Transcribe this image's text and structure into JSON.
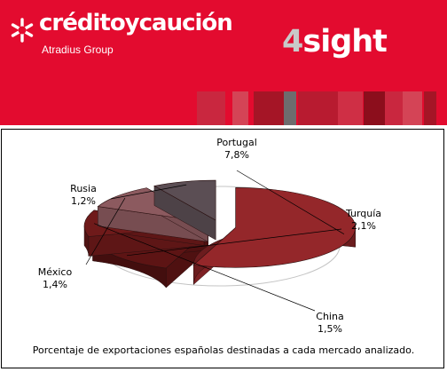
{
  "banner": {
    "brand_name": "créditoycaución",
    "brand_sub": "Atradius Group",
    "product_number": "4",
    "product_word": "sight",
    "colors": {
      "background": "#e30b2f",
      "block_shades": [
        "#c9273f",
        "#d44456",
        "#a51526",
        "#6e6c6e",
        "#b81b30",
        "#cf2f45",
        "#8c0e1c"
      ]
    }
  },
  "chart_data": {
    "type": "pie",
    "style": "3d-exploded",
    "slices": [
      {
        "label": "Portugal",
        "value": 7.8,
        "display": "7,8%",
        "color": "#94272a"
      },
      {
        "label": "Turquía",
        "value": 2.1,
        "display": "2,1%",
        "color": "#5d1414"
      },
      {
        "label": "China",
        "value": 1.5,
        "display": "1,5%",
        "color": "#6f1a1a"
      },
      {
        "label": "México",
        "value": 1.4,
        "display": "1,4%",
        "color": "#8c5a5f"
      },
      {
        "label": "Rusia",
        "value": 1.2,
        "display": "1,2%",
        "color": "#5b4e54"
      }
    ],
    "caption": "Porcentaje de exportaciones españolas destinadas a cada mercado analizado."
  }
}
